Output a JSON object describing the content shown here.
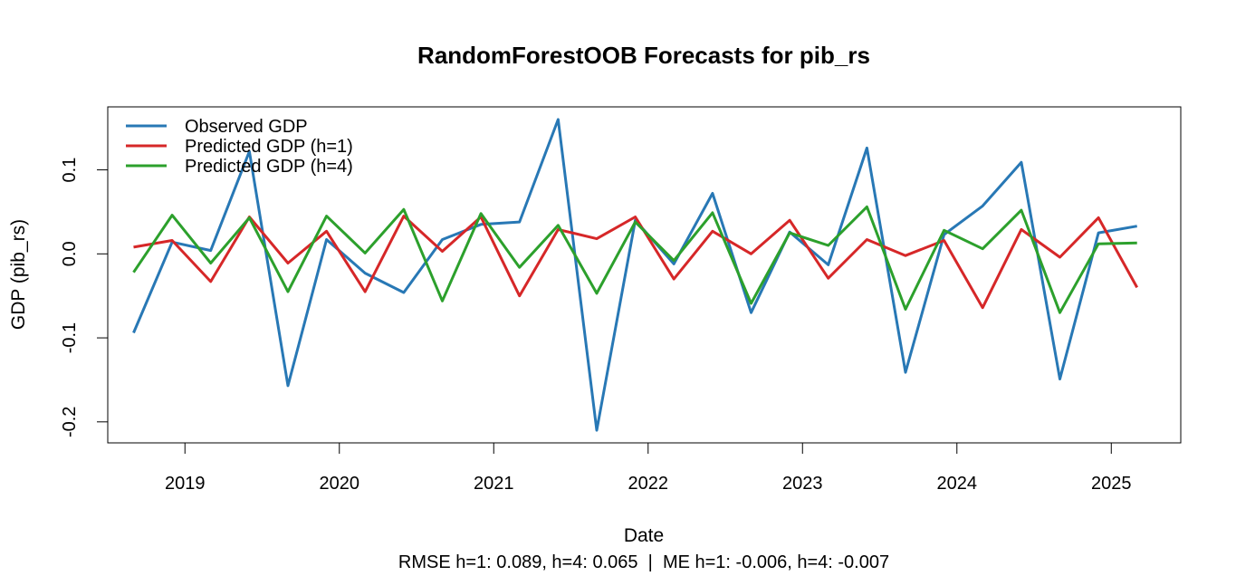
{
  "chart_data": {
    "type": "line",
    "title": "RandomForestOOB Forecasts for pib_rs",
    "xlabel": "Date",
    "ylabel": "GDP (pib_rs)",
    "subtitle": "RMSE h=1: 0.089, h=4: 0.065  |  ME h=1: -0.006, h=4: -0.007",
    "xlim": [
      2018.5,
      2025.45
    ],
    "ylim": [
      -0.225,
      0.175
    ],
    "x_ticks": [
      2019,
      2020,
      2021,
      2022,
      2023,
      2024,
      2025
    ],
    "x_tick_labels": [
      "2019",
      "2020",
      "2021",
      "2022",
      "2023",
      "2024",
      "2025"
    ],
    "y_ticks": [
      -0.2,
      -0.1,
      0.0,
      0.1
    ],
    "y_tick_labels": [
      "-0.2",
      "-0.1",
      "0.0",
      "0.1"
    ],
    "grid": false,
    "legend_position": "top-left",
    "x": [
      2018.667,
      2018.917,
      2019.167,
      2019.417,
      2019.667,
      2019.917,
      2020.167,
      2020.417,
      2020.667,
      2020.917,
      2021.167,
      2021.417,
      2021.667,
      2021.917,
      2022.167,
      2022.417,
      2022.667,
      2022.917,
      2023.167,
      2023.417,
      2023.667,
      2023.917,
      2024.167,
      2024.417,
      2024.667,
      2024.917,
      2025.167
    ],
    "series": [
      {
        "name": "Observed GDP",
        "color": "#2878b5",
        "values": [
          -0.094,
          0.014,
          0.004,
          0.122,
          -0.157,
          0.017,
          -0.023,
          -0.046,
          0.017,
          0.035,
          0.038,
          0.16,
          -0.21,
          0.04,
          -0.012,
          0.072,
          -0.07,
          0.026,
          -0.013,
          0.126,
          -0.141,
          0.023,
          0.057,
          0.109,
          -0.149,
          0.025,
          0.033
        ]
      },
      {
        "name": "Predicted GDP (h=1)",
        "color": "#d62728",
        "values": [
          0.008,
          0.016,
          -0.033,
          0.044,
          -0.011,
          0.027,
          -0.045,
          0.045,
          0.003,
          0.044,
          -0.05,
          0.029,
          0.018,
          0.044,
          -0.03,
          0.027,
          0.0,
          0.04,
          -0.029,
          0.017,
          -0.002,
          0.016,
          -0.064,
          0.029,
          -0.004,
          0.043,
          -0.04
        ]
      },
      {
        "name": "Predicted GDP (h=4)",
        "color": "#2ca02c",
        "values": [
          -0.022,
          0.046,
          -0.011,
          0.043,
          -0.045,
          0.045,
          0.001,
          0.053,
          -0.056,
          0.048,
          -0.016,
          0.034,
          -0.047,
          0.038,
          -0.008,
          0.049,
          -0.059,
          0.025,
          0.01,
          0.056,
          -0.066,
          0.028,
          0.006,
          0.052,
          -0.07,
          0.012,
          0.013
        ]
      }
    ]
  }
}
